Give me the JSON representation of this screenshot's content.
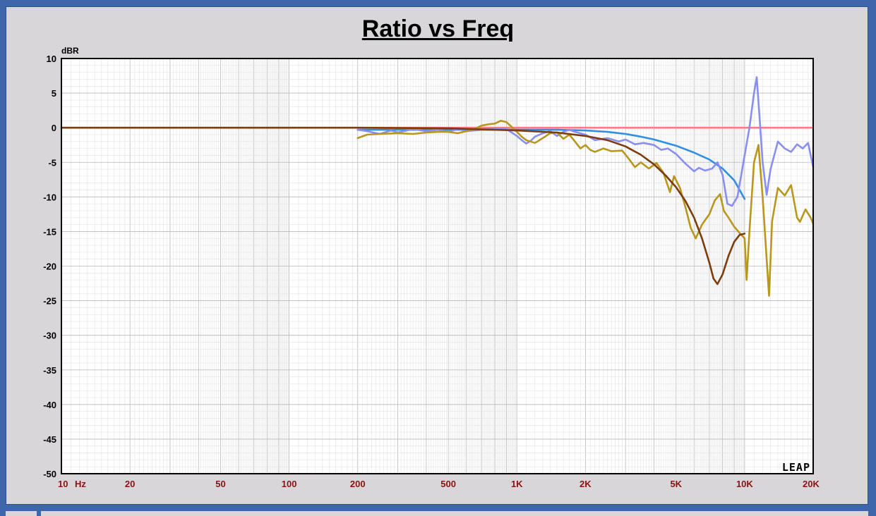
{
  "chart_data": {
    "type": "line",
    "title": "Ratio vs Freq",
    "ylabel": "dBR",
    "x_unit_label": "Hz",
    "watermark": "LEAP",
    "x_scale": "log",
    "xlim": [
      10,
      20000
    ],
    "ylim": [
      -50,
      10
    ],
    "grid": true,
    "x_ticks": [
      {
        "value": 10,
        "label": "10"
      },
      {
        "value": 20,
        "label": "20"
      },
      {
        "value": 50,
        "label": "50"
      },
      {
        "value": 100,
        "label": "100"
      },
      {
        "value": 200,
        "label": "200"
      },
      {
        "value": 500,
        "label": "500"
      },
      {
        "value": 1000,
        "label": "1K"
      },
      {
        "value": 2000,
        "label": "2K"
      },
      {
        "value": 5000,
        "label": "5K"
      },
      {
        "value": 10000,
        "label": "10K"
      },
      {
        "value": 20000,
        "label": "20K"
      }
    ],
    "y_ticks": [
      10,
      5,
      0,
      -5,
      -10,
      -15,
      -20,
      -25,
      -30,
      -35,
      -40,
      -45,
      -50
    ],
    "series": [
      {
        "color": "#ff7b84",
        "points": [
          [
            10,
            0
          ],
          [
            200,
            0
          ],
          [
            1000,
            0
          ],
          [
            5000,
            0
          ],
          [
            10000,
            0
          ],
          [
            20000,
            0
          ]
        ]
      },
      {
        "color": "#2f8fe3",
        "points": [
          [
            200,
            -0.3
          ],
          [
            500,
            -0.3
          ],
          [
            1000,
            -0.3
          ],
          [
            1500,
            -0.3
          ],
          [
            2000,
            -0.4
          ],
          [
            2500,
            -0.6
          ],
          [
            3000,
            -0.9
          ],
          [
            3500,
            -1.3
          ],
          [
            4000,
            -1.7
          ],
          [
            5000,
            -2.6
          ],
          [
            6000,
            -3.6
          ],
          [
            7000,
            -4.6
          ],
          [
            8000,
            -5.9
          ],
          [
            9000,
            -7.6
          ],
          [
            10000,
            -10.3
          ]
        ]
      },
      {
        "color": "#8a8ef0",
        "points": [
          [
            200,
            -0.3
          ],
          [
            220,
            -0.5
          ],
          [
            250,
            -0.9
          ],
          [
            280,
            -0.4
          ],
          [
            300,
            -0.7
          ],
          [
            350,
            -0.2
          ],
          [
            400,
            -0.5
          ],
          [
            450,
            -0.3
          ],
          [
            500,
            -0.6
          ],
          [
            550,
            -0.2
          ],
          [
            600,
            -0.5
          ],
          [
            700,
            -0.3
          ],
          [
            800,
            -0.1
          ],
          [
            900,
            -0.2
          ],
          [
            1000,
            -1.2
          ],
          [
            1050,
            -1.8
          ],
          [
            1100,
            -2.3
          ],
          [
            1150,
            -1.9
          ],
          [
            1200,
            -1.3
          ],
          [
            1300,
            -0.8
          ],
          [
            1400,
            -0.5
          ],
          [
            1500,
            -1.2
          ],
          [
            1600,
            -0.6
          ],
          [
            1700,
            -0.3
          ],
          [
            1800,
            -0.6
          ],
          [
            2000,
            -1.0
          ],
          [
            2200,
            -1.8
          ],
          [
            2500,
            -1.5
          ],
          [
            2800,
            -2.0
          ],
          [
            3000,
            -1.7
          ],
          [
            3300,
            -2.4
          ],
          [
            3600,
            -2.2
          ],
          [
            4000,
            -2.5
          ],
          [
            4300,
            -3.2
          ],
          [
            4600,
            -3.0
          ],
          [
            5000,
            -3.8
          ],
          [
            5500,
            -5.2
          ],
          [
            6000,
            -6.3
          ],
          [
            6300,
            -5.8
          ],
          [
            6700,
            -6.2
          ],
          [
            7200,
            -5.9
          ],
          [
            7600,
            -5.0
          ],
          [
            8000,
            -6.8
          ],
          [
            8400,
            -11.0
          ],
          [
            8800,
            -11.3
          ],
          [
            9300,
            -10.0
          ],
          [
            10000,
            -4.0
          ],
          [
            10500,
            0.0
          ],
          [
            11000,
            5.0
          ],
          [
            11300,
            7.3
          ],
          [
            11600,
            2.0
          ],
          [
            12000,
            -5.0
          ],
          [
            12500,
            -9.7
          ],
          [
            13000,
            -6.0
          ],
          [
            14000,
            -2.0
          ],
          [
            15000,
            -3.0
          ],
          [
            16000,
            -3.5
          ],
          [
            17000,
            -2.4
          ],
          [
            18000,
            -3.0
          ],
          [
            19000,
            -2.2
          ],
          [
            20000,
            -5.7
          ]
        ]
      },
      {
        "color": "#b8971c",
        "points": [
          [
            200,
            -1.5
          ],
          [
            220,
            -1.0
          ],
          [
            250,
            -0.9
          ],
          [
            300,
            -0.8
          ],
          [
            350,
            -0.9
          ],
          [
            400,
            -0.7
          ],
          [
            450,
            -0.6
          ],
          [
            500,
            -0.6
          ],
          [
            550,
            -0.8
          ],
          [
            600,
            -0.5
          ],
          [
            650,
            -0.2
          ],
          [
            700,
            0.3
          ],
          [
            750,
            0.5
          ],
          [
            800,
            0.6
          ],
          [
            850,
            1.0
          ],
          [
            900,
            0.8
          ],
          [
            950,
            0.1
          ],
          [
            1000,
            -0.6
          ],
          [
            1050,
            -1.3
          ],
          [
            1100,
            -1.8
          ],
          [
            1200,
            -2.2
          ],
          [
            1300,
            -1.5
          ],
          [
            1400,
            -0.8
          ],
          [
            1500,
            -0.7
          ],
          [
            1600,
            -1.6
          ],
          [
            1700,
            -1.0
          ],
          [
            1800,
            -2.0
          ],
          [
            1900,
            -3.0
          ],
          [
            2000,
            -2.5
          ],
          [
            2100,
            -3.2
          ],
          [
            2200,
            -3.5
          ],
          [
            2400,
            -3.0
          ],
          [
            2600,
            -3.4
          ],
          [
            2900,
            -3.3
          ],
          [
            3100,
            -4.5
          ],
          [
            3300,
            -5.7
          ],
          [
            3500,
            -5.0
          ],
          [
            3800,
            -5.9
          ],
          [
            4100,
            -5.1
          ],
          [
            4400,
            -6.5
          ],
          [
            4700,
            -9.3
          ],
          [
            4900,
            -7.0
          ],
          [
            5200,
            -8.7
          ],
          [
            5500,
            -11.5
          ],
          [
            5800,
            -14.5
          ],
          [
            6100,
            -16.0
          ],
          [
            6500,
            -14.0
          ],
          [
            7000,
            -12.5
          ],
          [
            7400,
            -10.5
          ],
          [
            7800,
            -9.6
          ],
          [
            8100,
            -12.0
          ],
          [
            8500,
            -13.0
          ],
          [
            9000,
            -14.3
          ],
          [
            9500,
            -15.2
          ],
          [
            10000,
            -16.0
          ],
          [
            10200,
            -22.0
          ],
          [
            10500,
            -15.0
          ],
          [
            11000,
            -5.0
          ],
          [
            11500,
            -2.5
          ],
          [
            12000,
            -10.0
          ],
          [
            12500,
            -19.0
          ],
          [
            12800,
            -24.3
          ],
          [
            13200,
            -13.5
          ],
          [
            14000,
            -8.7
          ],
          [
            15000,
            -9.8
          ],
          [
            16000,
            -8.3
          ],
          [
            17000,
            -13.0
          ],
          [
            17500,
            -13.6
          ],
          [
            18500,
            -11.8
          ],
          [
            19500,
            -13.0
          ],
          [
            20000,
            -13.9
          ]
        ]
      },
      {
        "color": "#7b3d0e",
        "points": [
          [
            10,
            0
          ],
          [
            200,
            0
          ],
          [
            500,
            -0.1
          ],
          [
            1000,
            -0.4
          ],
          [
            1500,
            -0.7
          ],
          [
            2000,
            -1.2
          ],
          [
            2500,
            -1.8
          ],
          [
            3000,
            -2.7
          ],
          [
            3500,
            -3.9
          ],
          [
            4000,
            -5.3
          ],
          [
            4500,
            -6.9
          ],
          [
            5000,
            -8.6
          ],
          [
            5500,
            -10.6
          ],
          [
            6000,
            -13.0
          ],
          [
            6500,
            -16.0
          ],
          [
            7000,
            -19.5
          ],
          [
            7300,
            -21.8
          ],
          [
            7600,
            -22.6
          ],
          [
            8000,
            -21.2
          ],
          [
            8500,
            -18.5
          ],
          [
            9000,
            -16.5
          ],
          [
            9500,
            -15.5
          ],
          [
            10000,
            -15.3
          ]
        ]
      }
    ]
  }
}
